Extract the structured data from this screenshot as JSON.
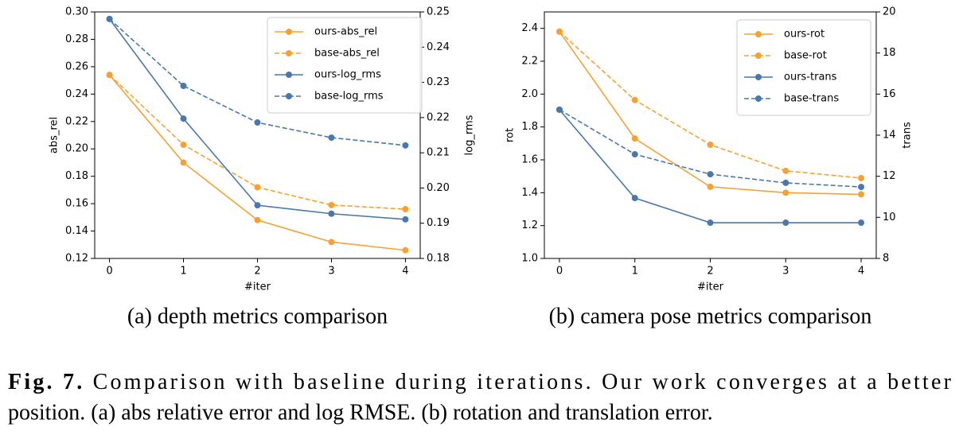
{
  "chart_data": [
    {
      "type": "line",
      "subtitle": "(a) depth metrics comparison",
      "xlabel": "#iter",
      "ylabel": "abs_rel",
      "y2label": "log_rms",
      "x": [
        0,
        1,
        2,
        3,
        4
      ],
      "xlim": [
        -0.2,
        4.2
      ],
      "xticks": [
        0,
        1,
        2,
        3,
        4
      ],
      "ylim": [
        0.12,
        0.3
      ],
      "yticks": [
        0.12,
        0.14,
        0.16,
        0.18,
        {
          "value": 0.2,
          "label": "0.20"
        },
        0.22,
        0.24,
        0.26,
        0.28,
        {
          "value": 0.3,
          "label": "0.30"
        }
      ],
      "y2lim": [
        0.18,
        0.25
      ],
      "y2ticks": [
        0.18,
        0.19,
        {
          "value": 0.2,
          "label": "0.20"
        },
        0.21,
        0.22,
        0.23,
        0.24,
        0.25
      ],
      "legend": "upper right",
      "series": [
        {
          "name": "ours-abs_rel",
          "color": "#f5a233",
          "linestyle": "solid",
          "values": [
            0.254,
            0.19,
            0.148,
            0.132,
            0.126
          ]
        },
        {
          "name": "base-abs_rel",
          "color": "#f5a233",
          "linestyle": "dashed",
          "values": [
            0.254,
            0.203,
            0.172,
            0.159,
            0.156
          ]
        },
        {
          "name": "ours-log_rms",
          "color": "#4a78ac",
          "linestyle": "solid",
          "axis": "y2",
          "values": [
            0.248,
            0.2197,
            0.1951,
            0.1927,
            0.1911
          ]
        },
        {
          "name": "base-log_rms",
          "color": "#4a78ac",
          "linestyle": "dashed",
          "axis": "y2",
          "values": [
            0.248,
            0.229,
            0.2186,
            0.2143,
            0.2121
          ]
        }
      ]
    },
    {
      "type": "line",
      "subtitle": "(b) camera pose metrics comparison",
      "xlabel": "#iter",
      "ylabel": "rot",
      "y2label": "trans",
      "x": [
        0,
        1,
        2,
        3,
        4
      ],
      "xlim": [
        -0.2,
        4.2
      ],
      "xticks": [
        0,
        1,
        2,
        3,
        4
      ],
      "ylim": [
        1.0,
        2.5
      ],
      "yticks": [
        {
          "value": 1,
          "label": "1.0"
        },
        1.2,
        1.4,
        1.6,
        1.8,
        {
          "value": 2,
          "label": "2.0"
        },
        2.2,
        2.4
      ],
      "y2lim": [
        8,
        20
      ],
      "y2ticks": [
        8,
        10,
        12,
        14,
        16,
        18,
        20
      ],
      "legend": "upper right",
      "series": [
        {
          "name": "ours-rot",
          "color": "#f5a233",
          "linestyle": "solid",
          "values": [
            2.38,
            1.73,
            1.436,
            1.4,
            1.39
          ]
        },
        {
          "name": "base-rot",
          "color": "#f5a233",
          "linestyle": "dashed",
          "values": [
            2.38,
            1.964,
            1.692,
            1.533,
            1.489
          ]
        },
        {
          "name": "ours-trans",
          "color": "#4a78ac",
          "linestyle": "solid",
          "axis": "y2",
          "values": [
            15.24,
            10.94,
            9.74,
            9.74,
            9.74
          ]
        },
        {
          "name": "base-trans",
          "color": "#4a78ac",
          "linestyle": "dashed",
          "axis": "y2",
          "values": [
            15.24,
            13.07,
            12.1,
            11.68,
            11.48
          ]
        }
      ]
    }
  ],
  "caption": {
    "label": "Fig. 7.",
    "lines": [
      "Comparison with baseline during iterations. Our work converges at a better",
      "position. (a) abs relative error and log RMSE. (b) rotation and translation error."
    ]
  }
}
